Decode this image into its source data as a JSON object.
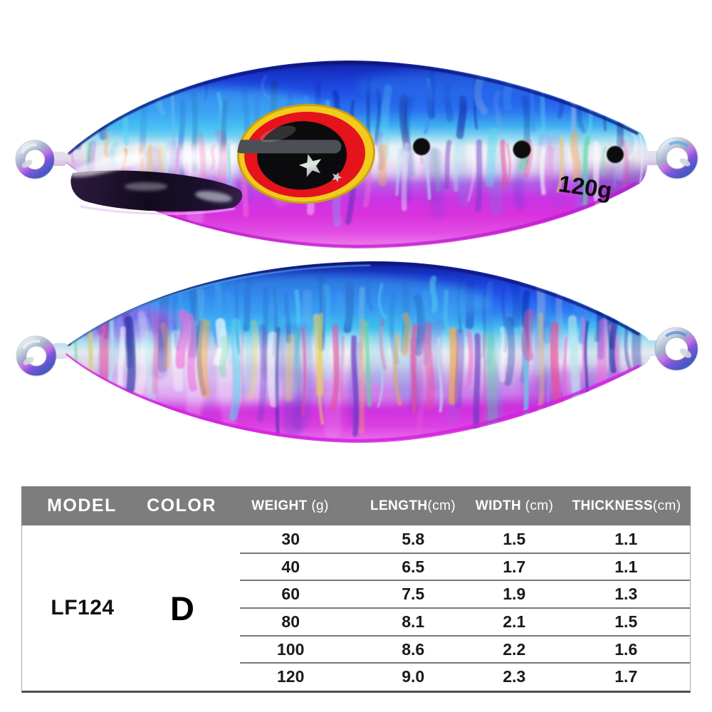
{
  "product": {
    "weight_marking": "120g",
    "model": "LF124",
    "color_code": "D"
  },
  "table": {
    "headers": [
      {
        "label": "MODEL",
        "unit": ""
      },
      {
        "label": "COLOR",
        "unit": ""
      },
      {
        "label": "WEIGHT",
        "unit": " (g)"
      },
      {
        "label": "LENGTH",
        "unit": "(cm)"
      },
      {
        "label": "WIDTH",
        "unit": " (cm)"
      },
      {
        "label": "THICKNESS",
        "unit": "(cm)"
      }
    ],
    "model": "LF124",
    "color": "D",
    "rows": [
      {
        "weight": "30",
        "length": "5.8",
        "width": "1.5",
        "thickness": "1.1"
      },
      {
        "weight": "40",
        "length": "6.5",
        "width": "1.7",
        "thickness": "1.1"
      },
      {
        "weight": "60",
        "length": "7.5",
        "width": "1.9",
        "thickness": "1.3"
      },
      {
        "weight": "80",
        "length": "8.1",
        "width": "2.1",
        "thickness": "1.5"
      },
      {
        "weight": "100",
        "length": "8.6",
        "width": "2.2",
        "thickness": "1.6"
      },
      {
        "weight": "120",
        "length": "9.0",
        "width": "2.3",
        "thickness": "1.7"
      }
    ]
  },
  "colors": {
    "body_blue": "#2257e8",
    "body_cyan": "#49c3f2",
    "body_silver": "#e8ecf0",
    "body_magenta": "#d82fe0",
    "eye_yellow": "#f2cb1d",
    "eye_red": "#e5131b",
    "eye_black": "#0b0b0e",
    "header_bg": "#7d7d7d",
    "header_text": "#ffffff",
    "table_text": "#1a1a1a",
    "row_line": "#787878"
  }
}
